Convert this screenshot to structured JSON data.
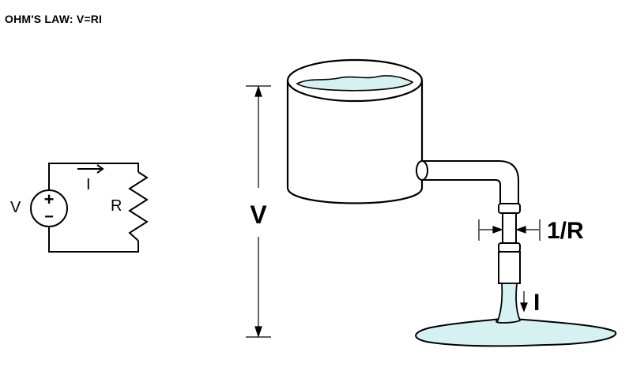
{
  "title": "OHM'S LAW: V=RI",
  "circuit": {
    "source_label": "V",
    "plus_sign": "+",
    "minus_sign": "−",
    "current_label": "I",
    "resistor_label": "R"
  },
  "analogy": {
    "height_label": "V",
    "constriction_label": "1/R",
    "flow_label": "I"
  },
  "colors": {
    "water": "#d6f1f1",
    "line": "#000000"
  }
}
